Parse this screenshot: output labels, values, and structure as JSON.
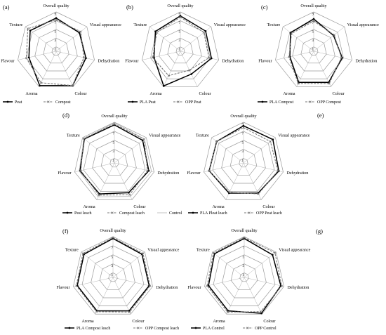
{
  "chart_data": [
    {
      "type": "radar",
      "panel": "(a)",
      "axes": [
        "Overall quality",
        "Visual appearance",
        "Dehydration",
        "Colour",
        "Aroma",
        "Flavour",
        "Texture"
      ],
      "ticks": [
        "9",
        "7",
        "5",
        "3",
        "1"
      ],
      "rlim": [
        0,
        9
      ],
      "series": [
        {
          "name": "Peat",
          "values": [
            7.6,
            6.8,
            7.0,
            8.7,
            8.7,
            6.4,
            7.6
          ],
          "color": "#000000",
          "style": "solid-circle"
        },
        {
          "name": "Compost",
          "values": [
            7.2,
            7.2,
            6.5,
            8.7,
            8.0,
            7.0,
            8.3
          ],
          "color": "#777777",
          "style": "dash-x"
        }
      ]
    },
    {
      "type": "radar",
      "panel": "(b)",
      "axes": [
        "Overall quality",
        "Visual appearance",
        "Dehydration",
        "Colour",
        "Aroma",
        "Flavour",
        "Texture"
      ],
      "ticks": [
        "9",
        "7",
        "5",
        "3",
        "1"
      ],
      "rlim": [
        0,
        9
      ],
      "series": [
        {
          "name": "PLA Peat",
          "values": [
            8.1,
            7.4,
            7.3,
            5.8,
            8.8,
            6.2,
            7.3
          ],
          "color": "#000000",
          "style": "solid-circle"
        },
        {
          "name": "OPP Peat",
          "values": [
            7.8,
            6.9,
            6.7,
            4.8,
            6.2,
            6.5,
            6.9
          ],
          "color": "#777777",
          "style": "dash-x"
        }
      ]
    },
    {
      "type": "radar",
      "panel": "(c)",
      "axes": [
        "Overall quality",
        "Visual appearance",
        "Dehydration",
        "Colour",
        "Aroma",
        "Flavour",
        "Texture"
      ],
      "ticks": [
        "9",
        "7",
        "5",
        "3",
        "1"
      ],
      "rlim": [
        0,
        9
      ],
      "series": [
        {
          "name": "PLA Compost",
          "values": [
            7.4,
            5.8,
            6.7,
            7.9,
            7.9,
            5.6,
            6.8
          ],
          "color": "#000000",
          "style": "solid-circle"
        },
        {
          "name": "OPP Compost",
          "values": [
            6.9,
            6.0,
            6.5,
            8.2,
            8.2,
            5.8,
            6.5
          ],
          "color": "#777777",
          "style": "dash-x"
        }
      ]
    },
    {
      "type": "radar",
      "panel": "(d)",
      "axes": [
        "Overall quality",
        "Visual appearance",
        "Dehydration",
        "Colour",
        "Aroma",
        "Flavour",
        "Texture"
      ],
      "ticks": [
        "9",
        "7",
        "5",
        "3",
        "1"
      ],
      "rlim": [
        0,
        9
      ],
      "series": [
        {
          "name": "Peat leach",
          "values": [
            8.4,
            8.0,
            7.8,
            7.3,
            7.6,
            7.8,
            8.5
          ],
          "color": "#000000",
          "style": "solid-circle"
        },
        {
          "name": "Compost leach",
          "values": [
            8.6,
            8.4,
            7.5,
            7.8,
            7.9,
            7.6,
            8.7
          ],
          "color": "#777777",
          "style": "dash-x"
        },
        {
          "name": "Control",
          "values": [
            8.9,
            8.5,
            8.4,
            8.2,
            8.3,
            8.0,
            8.6
          ],
          "color": "#aaaaaa",
          "style": "thin"
        }
      ]
    },
    {
      "type": "radar",
      "panel": "(e)",
      "axes": [
        "Overall quality",
        "Visual appearance",
        "Dehydration",
        "Colour",
        "Aroma",
        "Flavour",
        "Texture"
      ],
      "ticks": [
        "9",
        "7",
        "5",
        "3",
        "1"
      ],
      "rlim": [
        0,
        9
      ],
      "series": [
        {
          "name": "PLA Pleat leach",
          "values": [
            8.2,
            8.3,
            8.0,
            7.4,
            7.4,
            7.8,
            7.6
          ],
          "color": "#000000",
          "style": "solid-circle"
        },
        {
          "name": "OPP Peat leach",
          "values": [
            7.8,
            7.6,
            7.8,
            7.6,
            7.2,
            7.8,
            7.6
          ],
          "color": "#777777",
          "style": "dash-x"
        }
      ]
    },
    {
      "type": "radar",
      "panel": "(f)",
      "axes": [
        "Overall quality",
        "Visual appearance",
        "Dehydration",
        "Colour",
        "Aroma",
        "Flavour",
        "Texture"
      ],
      "ticks": [
        "9",
        "7",
        "5",
        "3",
        "1"
      ],
      "rlim": [
        0,
        9
      ],
      "series": [
        {
          "name": "PLA Compost leach",
          "values": [
            8.6,
            8.2,
            8.2,
            8.2,
            8.2,
            8.1,
            8.2
          ],
          "color": "#000000",
          "style": "solid-circle"
        },
        {
          "name": "OPP Compost leach",
          "values": [
            8.8,
            8.5,
            8.4,
            8.5,
            8.4,
            8.3,
            8.5
          ],
          "color": "#777777",
          "style": "dash-x"
        }
      ]
    },
    {
      "type": "radar",
      "panel": "(g)",
      "axes": [
        "Overall quality",
        "Visual appearance",
        "Dehydration",
        "Colour",
        "Aroma",
        "Flavour",
        "Texture"
      ],
      "ticks": [
        "9",
        "7",
        "5",
        "3",
        "1"
      ],
      "rlim": [
        0,
        9
      ],
      "series": [
        {
          "name": "PLA Control",
          "values": [
            8.6,
            8.0,
            8.3,
            8.8,
            8.2,
            8.1,
            8.4
          ],
          "color": "#000000",
          "style": "solid-circle"
        },
        {
          "name": "OPP Control",
          "values": [
            8.8,
            8.7,
            8.5,
            8.4,
            8.5,
            8.4,
            8.7
          ],
          "color": "#777777",
          "style": "dash-x"
        }
      ]
    }
  ]
}
